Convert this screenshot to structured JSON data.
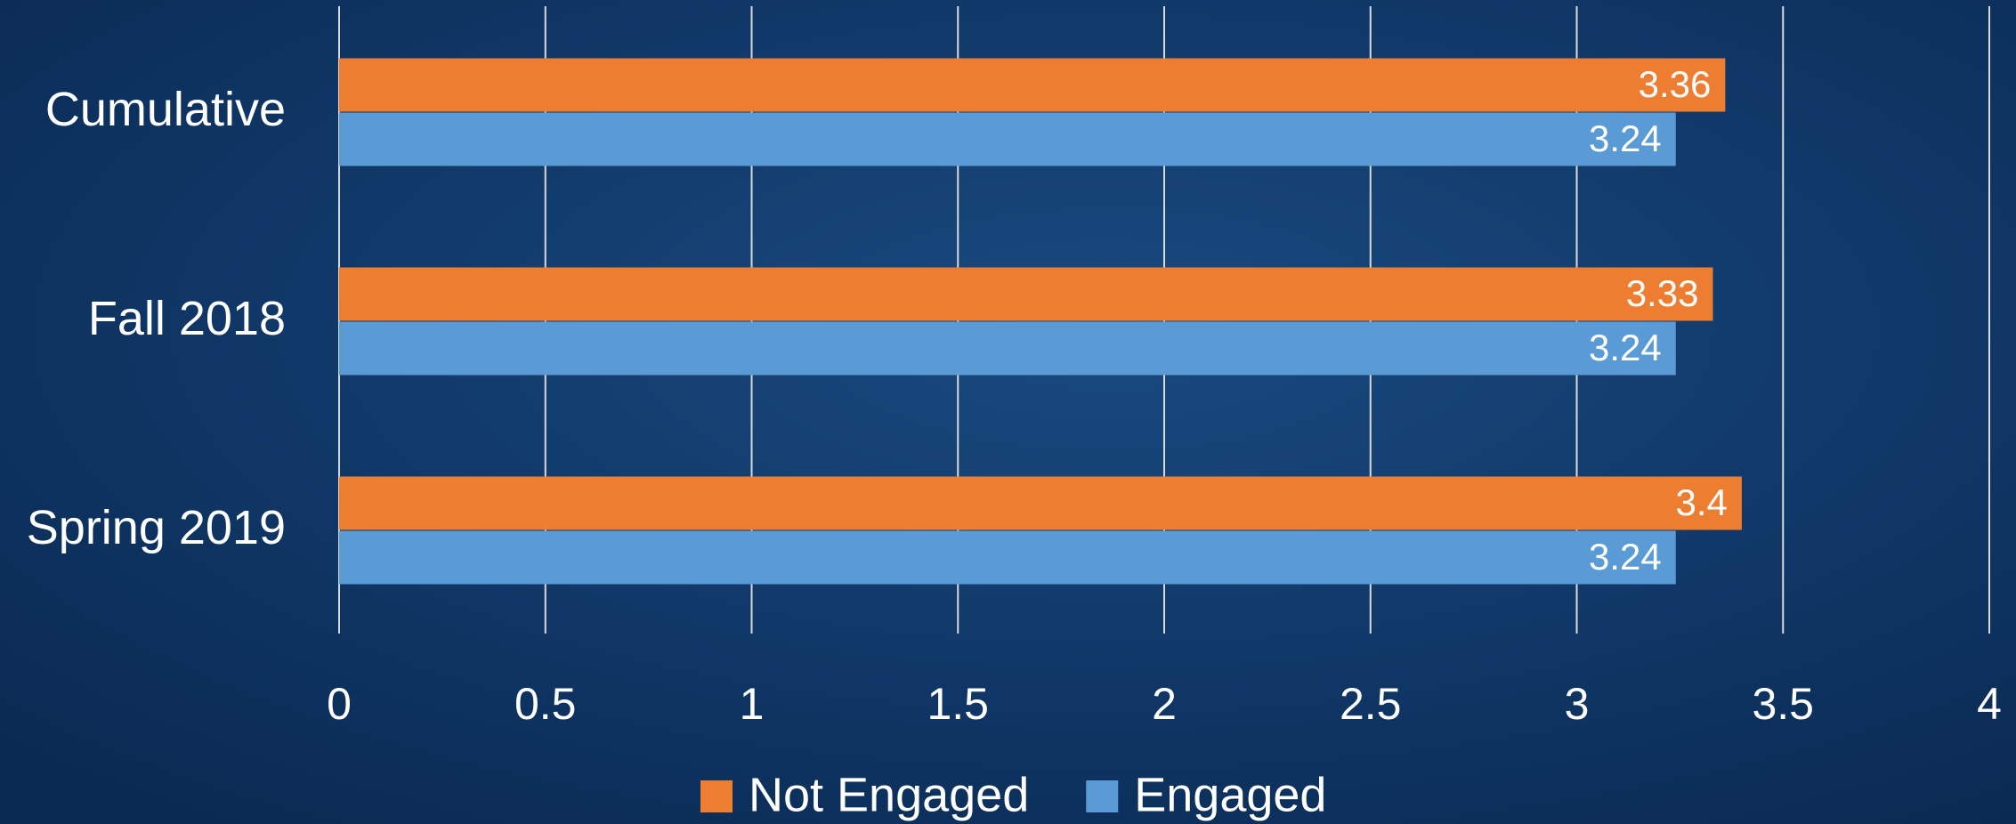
{
  "chart_data": {
    "type": "bar",
    "orientation": "horizontal",
    "categories": [
      "Cumulative",
      "Fall 2018",
      "Spring 2019"
    ],
    "series": [
      {
        "name": "Not Engaged",
        "color": "#ed7d31",
        "values": [
          3.36,
          3.33,
          3.4
        ]
      },
      {
        "name": "Engaged",
        "color": "#5b9bd5",
        "values": [
          3.24,
          3.24,
          3.24
        ]
      }
    ],
    "xlim": [
      0,
      4
    ],
    "xticks": [
      0,
      0.5,
      1,
      1.5,
      2,
      2.5,
      3,
      3.5,
      4
    ],
    "grid": true,
    "legend": "bottom"
  }
}
